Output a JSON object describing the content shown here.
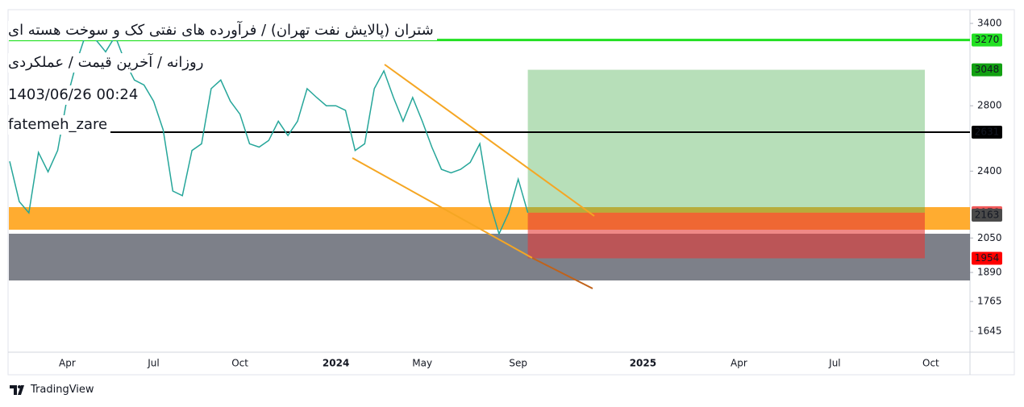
{
  "chart_data": {
    "type": "line",
    "title": "شتران (پالایش نفت تهران) / فرآورده های نفتی کک و سوخت هسته ای",
    "subtitle": "روزانه / آخرین قیمت / عملکردی",
    "timestamp": "1403/06/26 00:24",
    "author": "fatemeh_zare",
    "log_scale": true,
    "ylim": [
      1566,
      3512
    ],
    "yticks": [
      1645,
      1765,
      1890,
      2050,
      2400,
      2800,
      3400
    ],
    "color": "#26a69a",
    "categories": [
      null,
      null,
      null,
      null,
      null,
      null,
      "Apr",
      null,
      null,
      null,
      null,
      null,
      null,
      null,
      null,
      "Jul",
      null,
      null,
      null,
      null,
      null,
      null,
      null,
      null,
      "Oct",
      null,
      null,
      null,
      null,
      null,
      null,
      null,
      null,
      null,
      "2024",
      null,
      null,
      null,
      null,
      null,
      null,
      null,
      null,
      "May",
      null,
      null,
      null,
      null,
      null,
      null,
      null,
      null,
      null,
      "Sep",
      null,
      null,
      null,
      null,
      null,
      null,
      null,
      null,
      null,
      null,
      null,
      null,
      "2025",
      null,
      null,
      null,
      null,
      null,
      null,
      null,
      null,
      null,
      "Apr",
      null,
      null,
      null,
      null,
      null,
      null,
      null,
      null,
      null,
      "Jul",
      null,
      null,
      null,
      null,
      null,
      null,
      null,
      null,
      null,
      "Oct",
      null,
      null,
      null
    ],
    "values": [
      2456,
      2234,
      2175,
      2508,
      2396,
      2520,
      2855,
      3110,
      3330,
      3270,
      3180,
      3300,
      3110,
      2975,
      2940,
      2830,
      2645,
      2290,
      2265,
      2520,
      2560,
      2915,
      2975,
      2830,
      2745,
      2560,
      2540,
      2580,
      2700,
      2610,
      2700,
      2915,
      2855,
      2800,
      2800,
      2770,
      2520,
      2560,
      2915,
      3040,
      2855,
      2700,
      2855,
      2700,
      2540,
      2410,
      2390,
      2410,
      2450,
      2560,
      2234,
      2070,
      2175,
      2355,
      2176,
      null,
      null,
      null,
      null,
      null,
      null,
      null,
      null,
      null,
      null,
      null,
      null,
      null,
      null,
      null,
      null,
      null,
      null,
      null,
      null,
      null,
      null,
      null,
      null,
      null,
      null,
      null,
      null,
      null,
      null,
      null,
      null,
      null,
      null,
      null,
      null,
      null,
      null,
      null,
      null,
      null,
      null,
      null,
      null,
      null
    ],
    "price_labels": [
      {
        "value": 3270,
        "color": "#22e022",
        "text_color": "#131722",
        "line_color": "#22e022"
      },
      {
        "value": 3048,
        "color": "#12a012",
        "text_color": "#ffffff"
      },
      {
        "value": 2631,
        "color": "#000000",
        "text_color": "#ffffff",
        "line_color": "#000000"
      },
      {
        "value": 2176,
        "color": "#f05a5a",
        "text_color": "#ffffff"
      },
      {
        "value": 2163,
        "color": "#4a4a4a",
        "text_color": "#ffffff"
      },
      {
        "value": 1954,
        "color": "#ff0000",
        "text_color": "#ffffff"
      }
    ]
  },
  "footer": {
    "brand": "TradingView"
  }
}
